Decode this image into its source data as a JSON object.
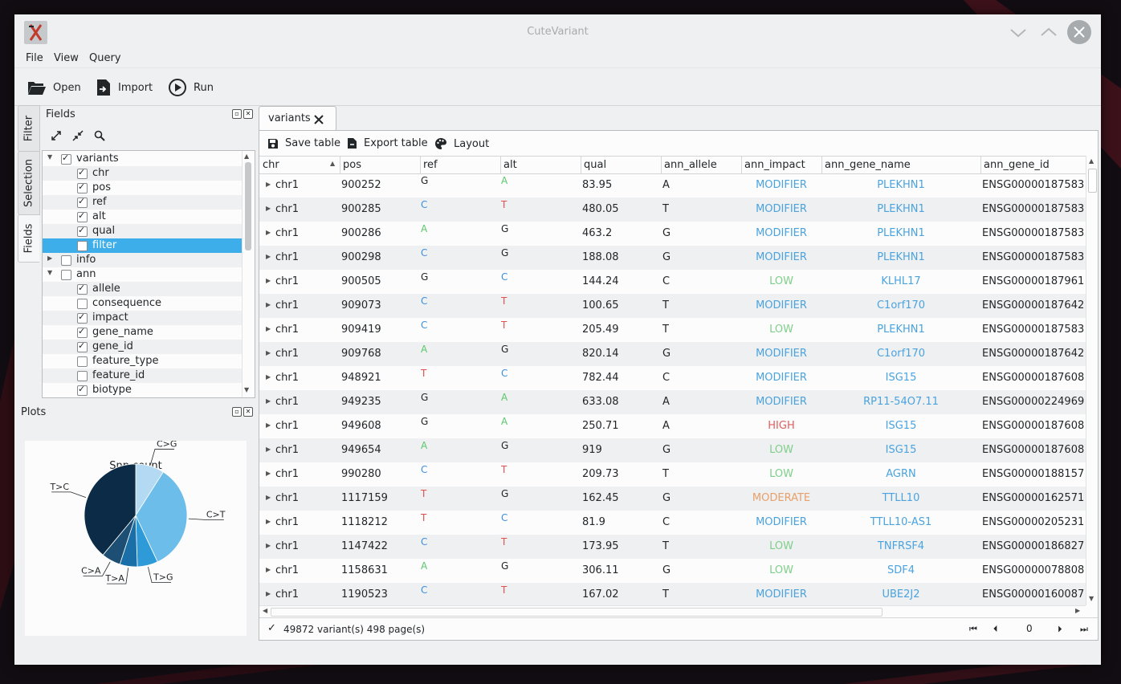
{
  "window": {
    "title": "CuteVariant"
  },
  "menu": [
    "File",
    "View",
    "Query"
  ],
  "toolbar": {
    "open": "Open",
    "import": "Import",
    "run": "Run"
  },
  "side_tabs": [
    "Filter",
    "Selection",
    "Fields"
  ],
  "fields_dock": {
    "title": "Fields",
    "tree": [
      {
        "label": "variants",
        "level": 0,
        "checked": true,
        "expanded": true
      },
      {
        "label": "chr",
        "level": 1,
        "checked": true
      },
      {
        "label": "pos",
        "level": 1,
        "checked": true
      },
      {
        "label": "ref",
        "level": 1,
        "checked": true
      },
      {
        "label": "alt",
        "level": 1,
        "checked": true
      },
      {
        "label": "qual",
        "level": 1,
        "checked": true
      },
      {
        "label": "filter",
        "level": 1,
        "checked": false,
        "selected": true
      },
      {
        "label": "info",
        "level": 0,
        "checked": false,
        "expanded": false
      },
      {
        "label": "ann",
        "level": 0,
        "checked": false,
        "expanded": true
      },
      {
        "label": "allele",
        "level": 1,
        "checked": true
      },
      {
        "label": "consequence",
        "level": 1,
        "checked": false
      },
      {
        "label": "impact",
        "level": 1,
        "checked": true
      },
      {
        "label": "gene_name",
        "level": 1,
        "checked": true
      },
      {
        "label": "gene_id",
        "level": 1,
        "checked": true
      },
      {
        "label": "feature_type",
        "level": 1,
        "checked": false
      },
      {
        "label": "feature_id",
        "level": 1,
        "checked": false
      },
      {
        "label": "biotype",
        "level": 1,
        "checked": true
      }
    ]
  },
  "plots_dock": {
    "title": "Plots"
  },
  "chart_data": {
    "type": "pie",
    "title": "Snp count",
    "labels": [
      "C>G",
      "C>T",
      "T>G",
      "T>A",
      "C>A",
      "T>C"
    ],
    "values": [
      0.09,
      0.34,
      0.065,
      0.055,
      0.06,
      0.39
    ],
    "colors": [
      "#b4daf3",
      "#6cbde9",
      "#2e9bd8",
      "#1a6fa8",
      "#1d4e74",
      "#0c2b46"
    ]
  },
  "tab": {
    "label": "variants"
  },
  "content_toolbar": {
    "save": "Save table",
    "export": "Export table",
    "layout": "Layout"
  },
  "table": {
    "columns": [
      "chr",
      "pos",
      "ref",
      "alt",
      "qual",
      "ann_allele",
      "ann_impact",
      "ann_gene_name",
      "ann_gene_id"
    ],
    "rows": [
      [
        "chr1",
        "900252",
        "G",
        "A",
        "83.95",
        "A",
        "MODIFIER",
        "PLEKHN1",
        "ENSG00000187583"
      ],
      [
        "chr1",
        "900285",
        "C",
        "T",
        "480.05",
        "T",
        "MODIFIER",
        "PLEKHN1",
        "ENSG00000187583"
      ],
      [
        "chr1",
        "900286",
        "A",
        "G",
        "463.2",
        "G",
        "MODIFIER",
        "PLEKHN1",
        "ENSG00000187583"
      ],
      [
        "chr1",
        "900298",
        "C",
        "G",
        "188.08",
        "G",
        "MODIFIER",
        "PLEKHN1",
        "ENSG00000187583"
      ],
      [
        "chr1",
        "900505",
        "G",
        "C",
        "144.24",
        "C",
        "LOW",
        "KLHL17",
        "ENSG00000187961"
      ],
      [
        "chr1",
        "909073",
        "C",
        "T",
        "100.65",
        "T",
        "MODIFIER",
        "C1orf170",
        "ENSG00000187642"
      ],
      [
        "chr1",
        "909419",
        "C",
        "T",
        "205.49",
        "T",
        "LOW",
        "PLEKHN1",
        "ENSG00000187583"
      ],
      [
        "chr1",
        "909768",
        "A",
        "G",
        "820.14",
        "G",
        "MODIFIER",
        "C1orf170",
        "ENSG00000187642"
      ],
      [
        "chr1",
        "948921",
        "T",
        "C",
        "782.44",
        "C",
        "MODIFIER",
        "ISG15",
        "ENSG00000187608"
      ],
      [
        "chr1",
        "949235",
        "G",
        "A",
        "633.08",
        "A",
        "MODIFIER",
        "RP11-54O7.11",
        "ENSG00000224969"
      ],
      [
        "chr1",
        "949608",
        "G",
        "A",
        "250.71",
        "A",
        "HIGH",
        "ISG15",
        "ENSG00000187608"
      ],
      [
        "chr1",
        "949654",
        "A",
        "G",
        "919",
        "G",
        "LOW",
        "ISG15",
        "ENSG00000187608"
      ],
      [
        "chr1",
        "990280",
        "C",
        "T",
        "209.73",
        "T",
        "LOW",
        "AGRN",
        "ENSG00000188157"
      ],
      [
        "chr1",
        "1117159",
        "T",
        "G",
        "162.45",
        "G",
        "MODERATE",
        "TTLL10",
        "ENSG00000162571"
      ],
      [
        "chr1",
        "1118212",
        "T",
        "C",
        "81.9",
        "C",
        "MODIFIER",
        "TTLL10-AS1",
        "ENSG00000205231"
      ],
      [
        "chr1",
        "1147422",
        "C",
        "T",
        "173.95",
        "T",
        "LOW",
        "TNFRSF4",
        "ENSG00000186827"
      ],
      [
        "chr1",
        "1158631",
        "A",
        "G",
        "306.11",
        "G",
        "LOW",
        "SDF4",
        "ENSG00000078808"
      ],
      [
        "chr1",
        "1190523",
        "C",
        "T",
        "167.02",
        "T",
        "MODIFIER",
        "UBE2J2",
        "ENSG00000160087"
      ]
    ]
  },
  "colors": {
    "selection": "#3daee9",
    "nucleotide": {
      "A": "#59c86b",
      "C": "#3d8fde",
      "G": "#232629",
      "T": "#e0524f"
    },
    "impact": {
      "MODIFIER": "#4aa3df",
      "LOW": "#7fce8a",
      "HIGH": "#e35d5d",
      "MODERATE": "#e8a06a"
    },
    "gene": "#4aa3df"
  },
  "status": {
    "text": "49872 variant(s) 498 page(s)",
    "page": "0"
  }
}
